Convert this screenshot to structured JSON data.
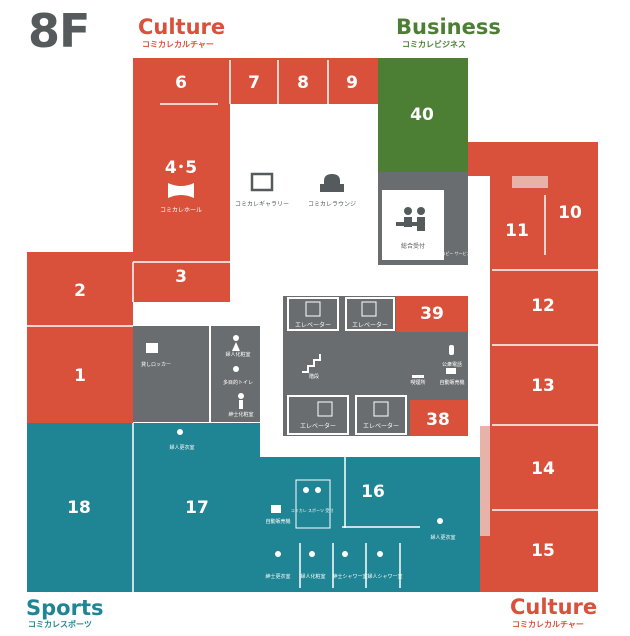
{
  "floor": "8F",
  "colors": {
    "culture": "#d9513b",
    "business": "#4c7f34",
    "sports": "#1f8494",
    "service": "#6a6d70",
    "white": "#ffffff"
  },
  "zones": {
    "culture_top": {
      "title": "Culture",
      "sub": "コミカレカルチャー"
    },
    "business": {
      "title": "Business",
      "sub": "コミカレビジネス"
    },
    "sports": {
      "title": "Sports",
      "sub": "コミカレスポーツ"
    },
    "culture_bottom": {
      "title": "Culture",
      "sub": "コミカレカルチャー"
    }
  },
  "rooms": {
    "r1": "1",
    "r2": "2",
    "r3": "3",
    "r45": "4･5",
    "r6": "6",
    "r7": "7",
    "r8": "8",
    "r9": "9",
    "r10": "10",
    "r11": "11",
    "r12": "12",
    "r13": "13",
    "r14": "14",
    "r15": "15",
    "r16": "16",
    "r17": "17",
    "r18": "18",
    "r38": "38",
    "r39": "39",
    "r40": "40"
  },
  "facilities": {
    "hall": "コミカレホール",
    "gallery": "コミカレギャラリー",
    "lounge": "コミカレラウンジ",
    "reception": "総合受付",
    "copy_service": "コピー\nサービス",
    "elevator": "エレベーター",
    "stairs": "階段",
    "phone": "公衆電話",
    "vending": "自動販売機",
    "smoking": "喫煙所",
    "lockers": "貸しロッカー",
    "womens_restroom": "婦人化粧室",
    "multi_toilet": "多目的トイレ",
    "mens_restroom": "紳士化粧室",
    "womens_changing": "婦人更衣室",
    "sports_reception": "コミカレ\nスポーツ\n受付",
    "mens_changing": "紳士更衣室",
    "mens_shower": "紳士シャワー室",
    "womens_shower": "婦人シャワー室"
  }
}
